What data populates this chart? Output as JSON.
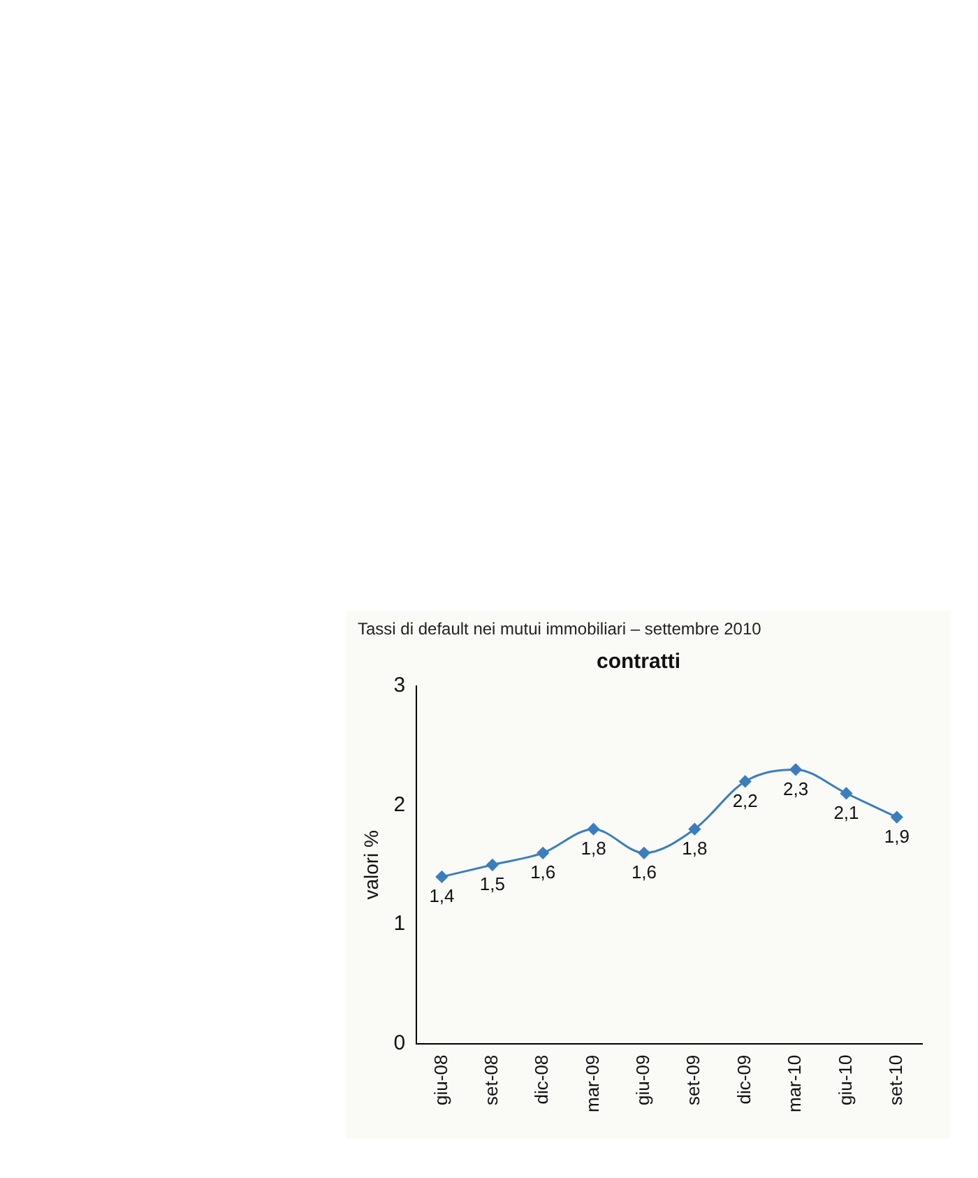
{
  "chart_data": {
    "type": "line",
    "title": "Tassi di default nei mutui immobiliari – settembre 2010",
    "subtitle": "contratti",
    "ylabel": "valori %",
    "categories": [
      "giu-08",
      "set-08",
      "dic-08",
      "mar-09",
      "giu-09",
      "set-09",
      "dic-09",
      "mar-10",
      "giu-10",
      "set-10"
    ],
    "series": [
      {
        "color": "#3a7ebf",
        "values": [
          1.4,
          1.5,
          1.6,
          1.8,
          1.6,
          1.8,
          2.2,
          2.3,
          2.1,
          1.9
        ],
        "value_labels": [
          "1,4",
          "1,5",
          "1,6",
          "1,8",
          "1,6",
          "1,8",
          "2,2",
          "2,3",
          "2,1",
          "1,9"
        ]
      }
    ],
    "ylim": [
      0,
      3
    ],
    "yticks": [
      0,
      1,
      2,
      3
    ],
    "grid": false,
    "legend": false,
    "marker": "diamond",
    "line_style": "solid"
  }
}
